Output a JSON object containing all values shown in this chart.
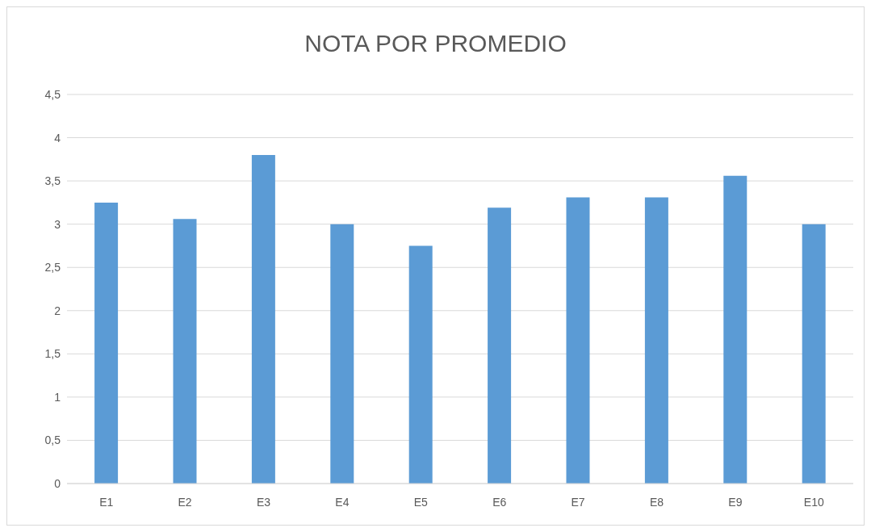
{
  "chart_data": {
    "type": "bar",
    "title": "NOTA POR PROMEDIO",
    "categories": [
      "E1",
      "E2",
      "E3",
      "E4",
      "E5",
      "E6",
      "E7",
      "E8",
      "E9",
      "E10"
    ],
    "values": [
      3.25,
      3.06,
      3.8,
      3.0,
      2.75,
      3.19,
      3.31,
      3.31,
      3.56,
      3.0
    ],
    "color": "#5b9bd5",
    "ylim": [
      0,
      4.5
    ],
    "yticks": [
      0,
      {
        "value": 0.5,
        "label": "0,5"
      },
      1,
      {
        "value": 1.5,
        "label": "1,5"
      },
      2,
      {
        "value": 2.5,
        "label": "2,5"
      },
      3,
      {
        "value": 3.5,
        "label": "3,5"
      },
      4,
      {
        "value": 4.5,
        "label": "4,5"
      }
    ],
    "grid": "y",
    "legend": false
  }
}
